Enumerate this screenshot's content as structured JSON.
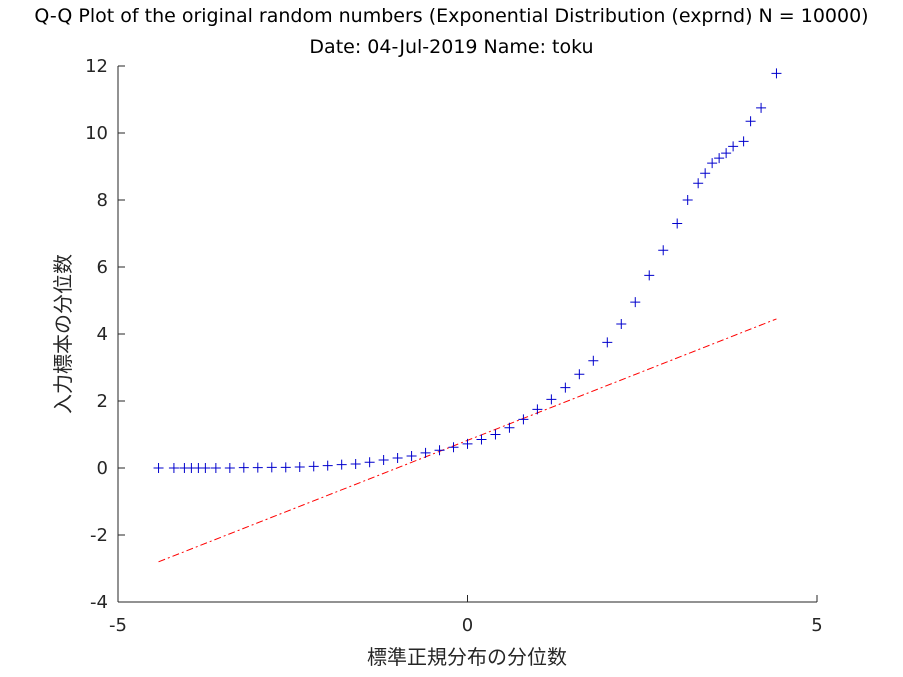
{
  "chart_data": {
    "type": "scatter",
    "title": "Q-Q Plot of the original random numbers (Exponential Distribution (exprnd) N = 10000)",
    "subtitle": "Date: 04-Jul-2019 Name: toku",
    "xlabel": "標準正規分布の分位数",
    "ylabel": "入力標本の分位数",
    "xlim": [
      -5,
      5
    ],
    "ylim": [
      -4,
      12
    ],
    "xticks": [
      "-5",
      "0",
      "5"
    ],
    "yticks": [
      "-4",
      "-2",
      "0",
      "2",
      "4",
      "6",
      "8",
      "10",
      "12"
    ],
    "grid": false,
    "series": [
      {
        "kind": "quantile-points",
        "marker": "+",
        "color": "#0000cc",
        "x": [
          -4.42,
          -4.2,
          -4.05,
          -3.95,
          -3.85,
          -3.75,
          -3.6,
          -3.4,
          -3.2,
          -3.0,
          -2.8,
          -2.6,
          -2.4,
          -2.2,
          -2.0,
          -1.8,
          -1.6,
          -1.4,
          -1.2,
          -1.0,
          -0.8,
          -0.6,
          -0.4,
          -0.2,
          0.0,
          0.2,
          0.4,
          0.6,
          0.8,
          1.0,
          1.2,
          1.4,
          1.6,
          1.8,
          2.0,
          2.2,
          2.4,
          2.6,
          2.8,
          3.0,
          3.15,
          3.3,
          3.4,
          3.5,
          3.6,
          3.7,
          3.8,
          3.95,
          4.05,
          4.2,
          4.42
        ],
        "y": [
          0.0,
          0.0,
          0.0,
          0.0,
          0.0,
          0.0,
          0.0,
          0.0,
          0.01,
          0.01,
          0.02,
          0.02,
          0.03,
          0.05,
          0.07,
          0.1,
          0.12,
          0.17,
          0.24,
          0.3,
          0.36,
          0.45,
          0.53,
          0.62,
          0.72,
          0.85,
          1.0,
          1.2,
          1.45,
          1.75,
          2.05,
          2.4,
          2.8,
          3.2,
          3.75,
          4.3,
          4.95,
          5.75,
          6.5,
          7.3,
          8.0,
          8.5,
          8.8,
          9.1,
          9.25,
          9.4,
          9.6,
          9.75,
          10.35,
          10.75,
          11.78
        ]
      },
      {
        "kind": "reference-line",
        "style": "dash-dot",
        "color": "#ff0000",
        "x": [
          -4.42,
          4.42
        ],
        "y": [
          -2.8,
          4.45
        ]
      }
    ]
  }
}
